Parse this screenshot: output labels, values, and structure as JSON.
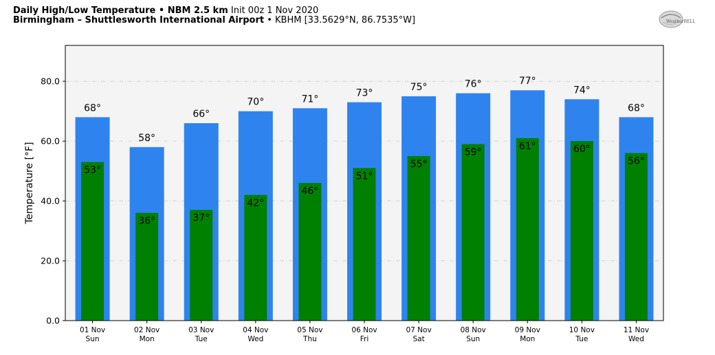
{
  "header": {
    "line1_bold": "Daily High/Low Temperature • NBM 2.5 km",
    "line1_rest": "Init 00z 1 Nov 2020",
    "line2_bold": "Birmingham – Shuttlesworth International Airport",
    "line2_rest": "• KBHM [33.5629°N, 86.7535°W]"
  },
  "logo": {
    "text": "WeatherBELL"
  },
  "chart_data": {
    "type": "bar",
    "title": "",
    "xlabel": "",
    "ylabel": "Temperature [°F]",
    "ylim": [
      0,
      92
    ],
    "yticks": [
      "0.0",
      "20.0",
      "40.0",
      "60.0",
      "80.0"
    ],
    "grid": true,
    "colors": {
      "high": "#2f83ee",
      "low": "#008000",
      "plot_bg": "#f4f4f4",
      "grid": "#cccccc"
    },
    "categories": [
      {
        "date": "01 Nov",
        "day": "Sun"
      },
      {
        "date": "02 Nov",
        "day": "Mon"
      },
      {
        "date": "03 Nov",
        "day": "Tue"
      },
      {
        "date": "04 Nov",
        "day": "Wed"
      },
      {
        "date": "05 Nov",
        "day": "Thu"
      },
      {
        "date": "06 Nov",
        "day": "Fri"
      },
      {
        "date": "07 Nov",
        "day": "Sat"
      },
      {
        "date": "08 Nov",
        "day": "Sun"
      },
      {
        "date": "09 Nov",
        "day": "Mon"
      },
      {
        "date": "10 Nov",
        "day": "Tue"
      },
      {
        "date": "11 Nov",
        "day": "Wed"
      }
    ],
    "series": [
      {
        "key": "high",
        "values": [
          68,
          58,
          66,
          70,
          71,
          73,
          75,
          76,
          77,
          74,
          68
        ],
        "labels": [
          "68°",
          "58°",
          "66°",
          "70°",
          "71°",
          "73°",
          "75°",
          "76°",
          "77°",
          "74°",
          "68°"
        ]
      },
      {
        "key": "low",
        "values": [
          53,
          36,
          37,
          42,
          46,
          51,
          55,
          59,
          61,
          60,
          56
        ],
        "labels": [
          "53°",
          "36°",
          "37°",
          "42°",
          "46°",
          "51°",
          "55°",
          "59°",
          "61°",
          "60°",
          "56°"
        ]
      }
    ]
  }
}
